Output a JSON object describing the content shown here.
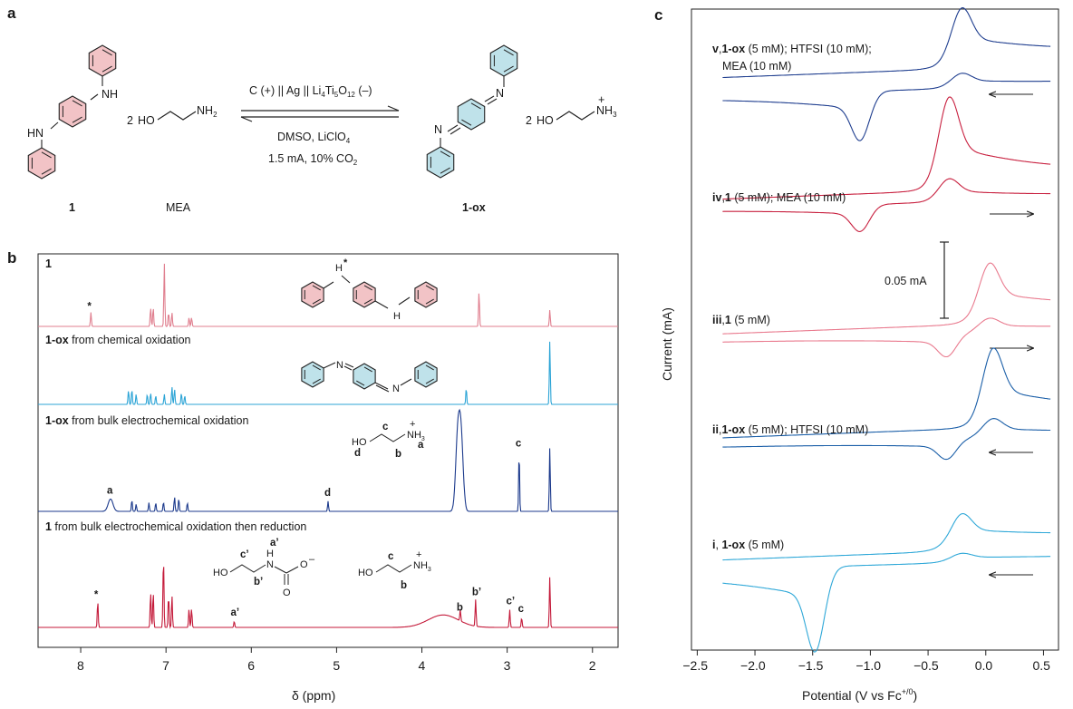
{
  "panels": {
    "a": "a",
    "b": "b",
    "c": "c"
  },
  "scheme": {
    "reactant_label": "1",
    "mea_label": "MEA",
    "product_label": "1-ox",
    "mea_formula_prefix": "2",
    "arrow_top": "C (+) || Ag || Li4Ti5O12 (–)",
    "arrow_bottom_1": "DMSO, LiClO4",
    "arrow_bottom_2": "1.5 mA, 10% CO2",
    "atom_NH": "NH",
    "atom_HN": "HN",
    "atom_N": "N",
    "atom_HO": "HO",
    "atom_NH2": "NH",
    "sub_2": "2",
    "atom_NH3": "NH",
    "sub_3": "3",
    "plus": "+",
    "sub_4": "4",
    "sub_5": "5",
    "sub_12": "12"
  },
  "chart_data": [
    {
      "type": "line",
      "title": "",
      "xlabel": "δ (ppm)",
      "ylabel": "",
      "xlim": [
        8.5,
        1.7
      ],
      "x_reversed": true,
      "xticks": [
        8,
        7,
        6,
        5,
        4,
        3,
        2
      ],
      "series": [
        {
          "name": "1",
          "color": "#e07f8f",
          "peaks": [
            {
              "delta": 7.88,
              "height": 0.22,
              "label": "*"
            },
            {
              "delta": 7.18,
              "height": 0.3
            },
            {
              "delta": 7.15,
              "height": 0.3
            },
            {
              "delta": 7.02,
              "height": 1.0
            },
            {
              "delta": 6.97,
              "height": 0.22
            },
            {
              "delta": 6.93,
              "height": 0.22
            },
            {
              "delta": 6.73,
              "height": 0.14
            },
            {
              "delta": 6.7,
              "height": 0.14
            },
            {
              "delta": 3.33,
              "height": 0.55
            },
            {
              "delta": 2.5,
              "height": 0.26
            }
          ]
        },
        {
          "name": "1-ox from chemical oxidation",
          "color": "#2ca4d6",
          "peaks": [
            {
              "delta": 7.44,
              "height": 0.22
            },
            {
              "delta": 7.4,
              "height": 0.24
            },
            {
              "delta": 7.35,
              "height": 0.16
            },
            {
              "delta": 7.22,
              "height": 0.16
            },
            {
              "delta": 7.18,
              "height": 0.18
            },
            {
              "delta": 7.12,
              "height": 0.14
            },
            {
              "delta": 7.02,
              "height": 0.16
            },
            {
              "delta": 6.93,
              "height": 0.28
            },
            {
              "delta": 6.9,
              "height": 0.24
            },
            {
              "delta": 6.82,
              "height": 0.18
            },
            {
              "delta": 6.78,
              "height": 0.14
            },
            {
              "delta": 3.48,
              "height": 0.26
            },
            {
              "delta": 2.5,
              "height": 1.0
            }
          ]
        },
        {
          "name": "1-ox from bulk electrochemical oxidation",
          "color": "#1c3a8c",
          "peaks": [
            {
              "delta": 7.65,
              "height": 0.17,
              "label": "a"
            },
            {
              "delta": 7.4,
              "height": 0.16
            },
            {
              "delta": 7.35,
              "height": 0.1
            },
            {
              "delta": 7.2,
              "height": 0.12
            },
            {
              "delta": 7.12,
              "height": 0.12
            },
            {
              "delta": 7.03,
              "height": 0.13
            },
            {
              "delta": 6.9,
              "height": 0.2
            },
            {
              "delta": 6.85,
              "height": 0.18
            },
            {
              "delta": 6.75,
              "height": 0.12
            },
            {
              "delta": 5.1,
              "height": 0.14,
              "label": "d"
            },
            {
              "delta": 3.58,
              "height": 0.97
            },
            {
              "delta": 3.54,
              "height": 0.97
            },
            {
              "delta": 2.86,
              "height": 0.82,
              "label": "c"
            },
            {
              "delta": 2.5,
              "height": 0.88
            }
          ]
        },
        {
          "name": "1 from bulk electrochemical oxidation then reduction",
          "color": "#c41a3a",
          "peaks": [
            {
              "delta": 7.8,
              "height": 0.3,
              "label": "*"
            },
            {
              "delta": 7.18,
              "height": 0.4
            },
            {
              "delta": 7.15,
              "height": 0.4
            },
            {
              "delta": 7.03,
              "height": 0.81
            },
            {
              "delta": 6.97,
              "height": 0.36
            },
            {
              "delta": 6.93,
              "height": 0.36
            },
            {
              "delta": 6.73,
              "height": 0.21
            },
            {
              "delta": 6.7,
              "height": 0.21
            },
            {
              "delta": 6.2,
              "height": 0.07,
              "label": "a’"
            },
            {
              "delta": 3.75,
              "height": 0.14
            },
            {
              "delta": 3.55,
              "height": 0.13,
              "label": "b"
            },
            {
              "delta": 3.37,
              "height": 0.3,
              "label": "b’"
            },
            {
              "delta": 2.97,
              "height": 0.2,
              "label": "c’"
            },
            {
              "delta": 2.83,
              "height": 0.11,
              "label": "c"
            },
            {
              "delta": 2.5,
              "height": 0.57
            }
          ]
        }
      ],
      "insets": {
        "nh_label": "H",
        "star": "*",
        "h_label": "H",
        "n_label": "N",
        "nh3": "NH",
        "sub3": "3",
        "plus": "+",
        "ho": "HO",
        "carbamate_o_minus": "O",
        "minus": "–",
        "carbamate_o": "O",
        "peak_a": "a",
        "peak_b": "b",
        "peak_c": "c",
        "peak_d": "d",
        "peak_a_p": "a’",
        "peak_b_p": "b’",
        "peak_c_p": "c’"
      }
    },
    {
      "type": "line",
      "title": "",
      "xlabel": "Potential (V vs Fc+/0)",
      "ylabel": "Current (mA)",
      "xlim": [
        -2.55,
        0.63
      ],
      "xticks": [
        "−2.5",
        "−2.0",
        "−1.5",
        "−1.0",
        "−0.5",
        "0.0",
        "0.5"
      ],
      "scale_bar": "0.05 mA",
      "series": [
        {
          "name": "v,1-ox (5 mM); HTFSI (10 mM); MEA (10 mM)",
          "color": "#1f3e8f",
          "scan": "←",
          "E_ox": -0.22,
          "E_red": -1.08
        },
        {
          "name": "iv,1 (5 mM); MEA (10 mM)",
          "color": "#c8203f",
          "scan": "→",
          "E_ox": -0.33,
          "E_red": -1.08
        },
        {
          "name": "iii,1 (5 mM)",
          "color": "#e97a8e",
          "scan": "→",
          "E_ox": 0.02,
          "E_red": -0.33
        },
        {
          "name": "ii,1-ox (5 mM); HTFSI (10 mM)",
          "color": "#1b5fa8",
          "scan": "←",
          "E_ox": 0.05,
          "E_red": -0.33
        },
        {
          "name": "i, 1-ox (5 mM)",
          "color": "#2fa8d8",
          "scan": "←",
          "E_ox": -0.22,
          "E_red": -1.47
        }
      ],
      "legend_text": {
        "v": [
          "v",
          ",",
          "1-ox",
          " (5 mM); HTFSI (10 mM);",
          "MEA (10 mM)"
        ],
        "iv": [
          "iv",
          ",",
          "1",
          " (5 mM); MEA (10 mM)"
        ],
        "iii": [
          "iii",
          ",",
          "1",
          " (5 mM)"
        ],
        "ii": [
          "ii",
          ",",
          "1-ox",
          " (5 mM); HTFSI (10 mM)"
        ],
        "i": [
          "i",
          ", ",
          "1-ox",
          " (5 mM)"
        ]
      },
      "xlabel_main": "Potential (V vs Fc",
      "xlabel_sup": "+/0",
      "xlabel_end": ")"
    }
  ]
}
